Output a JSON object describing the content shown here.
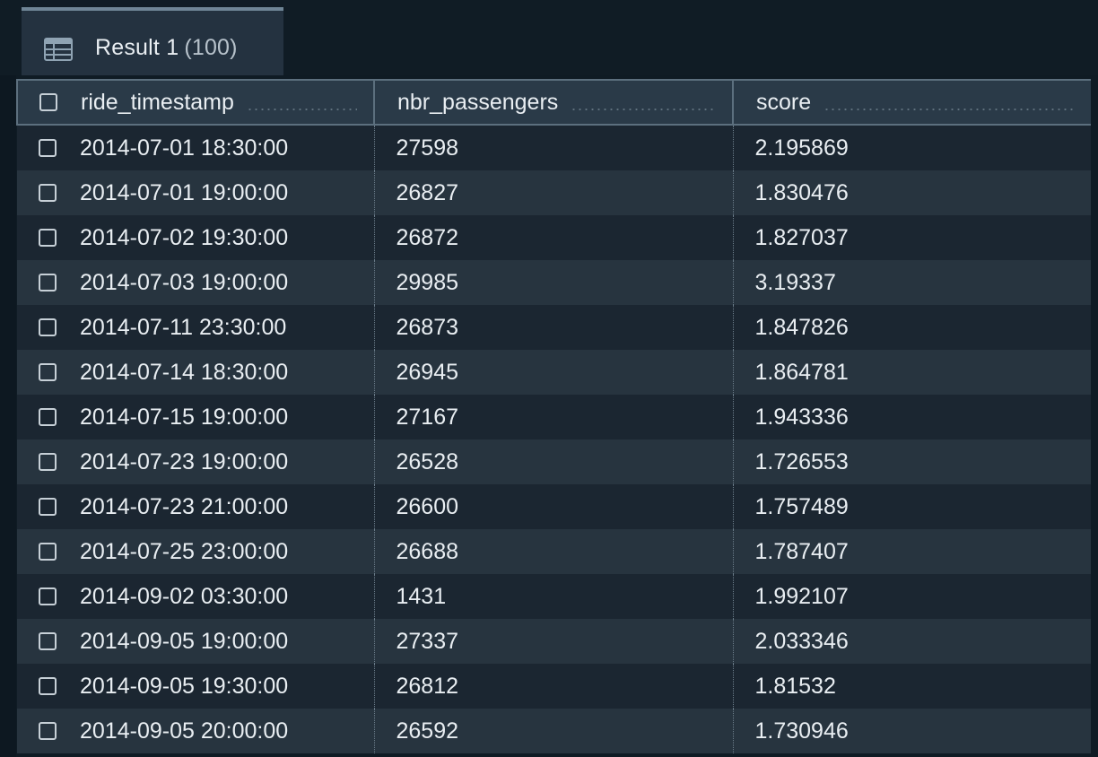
{
  "tab": {
    "label": "Result 1",
    "count": "(100)",
    "icon": "table-icon"
  },
  "table": {
    "columns": [
      "ride_timestamp",
      "nbr_passengers",
      "score"
    ],
    "rows": [
      [
        "2014-07-01 18:30:00",
        "27598",
        "2.195869"
      ],
      [
        "2014-07-01 19:00:00",
        "26827",
        "1.830476"
      ],
      [
        "2014-07-02 19:30:00",
        "26872",
        "1.827037"
      ],
      [
        "2014-07-03 19:00:00",
        "29985",
        "3.19337"
      ],
      [
        "2014-07-11 23:30:00",
        "26873",
        "1.847826"
      ],
      [
        "2014-07-14 18:30:00",
        "26945",
        "1.864781"
      ],
      [
        "2014-07-15 19:00:00",
        "27167",
        "1.943336"
      ],
      [
        "2014-07-23 19:00:00",
        "26528",
        "1.726553"
      ],
      [
        "2014-07-23 21:00:00",
        "26600",
        "1.757489"
      ],
      [
        "2014-07-25 23:00:00",
        "26688",
        "1.787407"
      ],
      [
        "2014-09-02 03:30:00",
        "1431",
        "1.992107"
      ],
      [
        "2014-09-05 19:00:00",
        "27337",
        "2.033346"
      ],
      [
        "2014-09-05 19:30:00",
        "26812",
        "1.81532"
      ],
      [
        "2014-09-05 20:00:00",
        "26592",
        "1.730946"
      ]
    ]
  },
  "colors": {
    "background": "#0f1b24",
    "header_bg": "#2a3a48",
    "row_odd": "#1b2631",
    "row_even": "#27343f",
    "tab_bg": "#243240",
    "text": "#e9eef2"
  }
}
